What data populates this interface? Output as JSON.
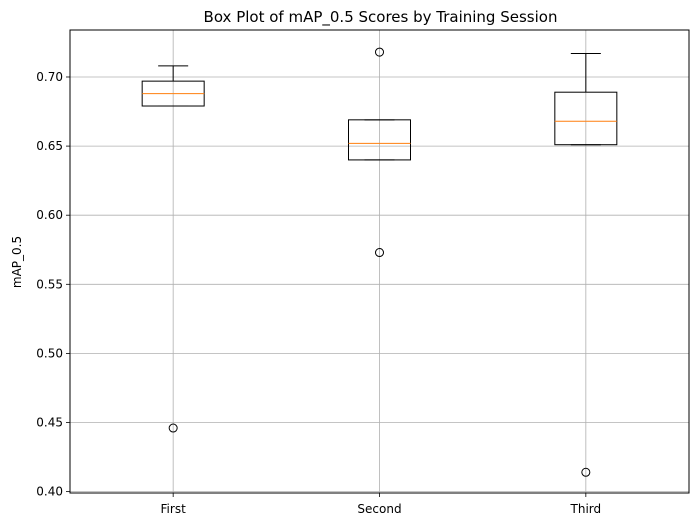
{
  "chart_data": {
    "type": "box",
    "title": "Box Plot of mAP_0.5 Scores by Training Session",
    "xlabel": "",
    "ylabel": "mAP_0.5",
    "ylim": [
      0.399,
      0.734
    ],
    "yticks": [
      "0.40",
      "0.45",
      "0.50",
      "0.55",
      "0.60",
      "0.65",
      "0.70"
    ],
    "grid": true,
    "categories": [
      "First",
      "Second",
      "Third"
    ],
    "boxes": [
      {
        "category": "First",
        "whisker_low": 0.679,
        "q1": 0.679,
        "median": 0.688,
        "q3": 0.697,
        "whisker_high": 0.708,
        "outliers": [
          0.446
        ]
      },
      {
        "category": "Second",
        "whisker_low": 0.64,
        "q1": 0.64,
        "median": 0.652,
        "q3": 0.669,
        "whisker_high": 0.669,
        "outliers": [
          0.718,
          0.573
        ]
      },
      {
        "category": "Third",
        "whisker_low": 0.651,
        "q1": 0.651,
        "median": 0.668,
        "q3": 0.689,
        "whisker_high": 0.717,
        "outliers": [
          0.414
        ]
      }
    ],
    "colors": {
      "box": "#000000",
      "median": "#ff7f0e",
      "grid": "#b0b0b0"
    }
  }
}
